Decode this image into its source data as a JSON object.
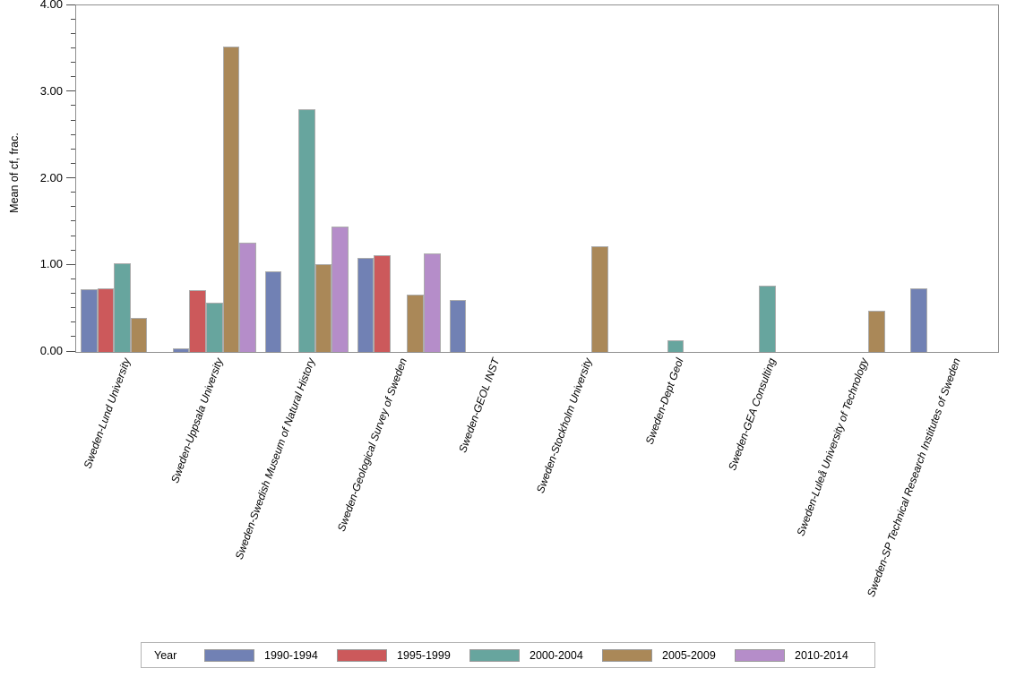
{
  "chart_data": {
    "type": "bar",
    "title": "",
    "ylabel": "Mean of cf, frac.",
    "xlabel": "",
    "ylim": [
      0,
      4
    ],
    "ytick_labels": [
      "0.00",
      "1.00",
      "2.00",
      "3.00",
      "4.00"
    ],
    "grid": false,
    "legend_title": "Year",
    "legend_position": "bottom",
    "categories": [
      "Sweden-Lund University",
      "Sweden-Uppsala University",
      "Sweden-Swedish Museum of Natural History",
      "Sweden-Geological Survey of Sweden",
      "Sweden-GEOL INST",
      "Sweden-Stockholm University",
      "Sweden-Dept Geol",
      "Sweden-GEA Consulting",
      "Sweden-Luleå University of Technology",
      "Sweden-SP Technical Research Institutes of Sweden"
    ],
    "series": [
      {
        "name": "1990-1994",
        "color": "#7181B4",
        "values": [
          0.72,
          0.04,
          0.93,
          1.09,
          0.6,
          null,
          null,
          null,
          null,
          0.73
        ]
      },
      {
        "name": "1995-1999",
        "color": "#CC595B",
        "values": [
          0.73,
          0.71,
          null,
          1.12,
          null,
          null,
          null,
          null,
          null,
          null
        ]
      },
      {
        "name": "2000-2004",
        "color": "#67A59E",
        "values": [
          1.02,
          0.57,
          2.8,
          null,
          null,
          null,
          0.13,
          0.76,
          null,
          null
        ]
      },
      {
        "name": "2005-2009",
        "color": "#AA8858",
        "values": [
          0.39,
          3.52,
          1.01,
          0.66,
          null,
          1.22,
          null,
          null,
          0.48,
          null
        ]
      },
      {
        "name": "2010-2014",
        "color": "#B58DC9",
        "values": [
          null,
          1.26,
          1.45,
          1.14,
          null,
          null,
          null,
          null,
          null,
          null
        ]
      }
    ]
  }
}
